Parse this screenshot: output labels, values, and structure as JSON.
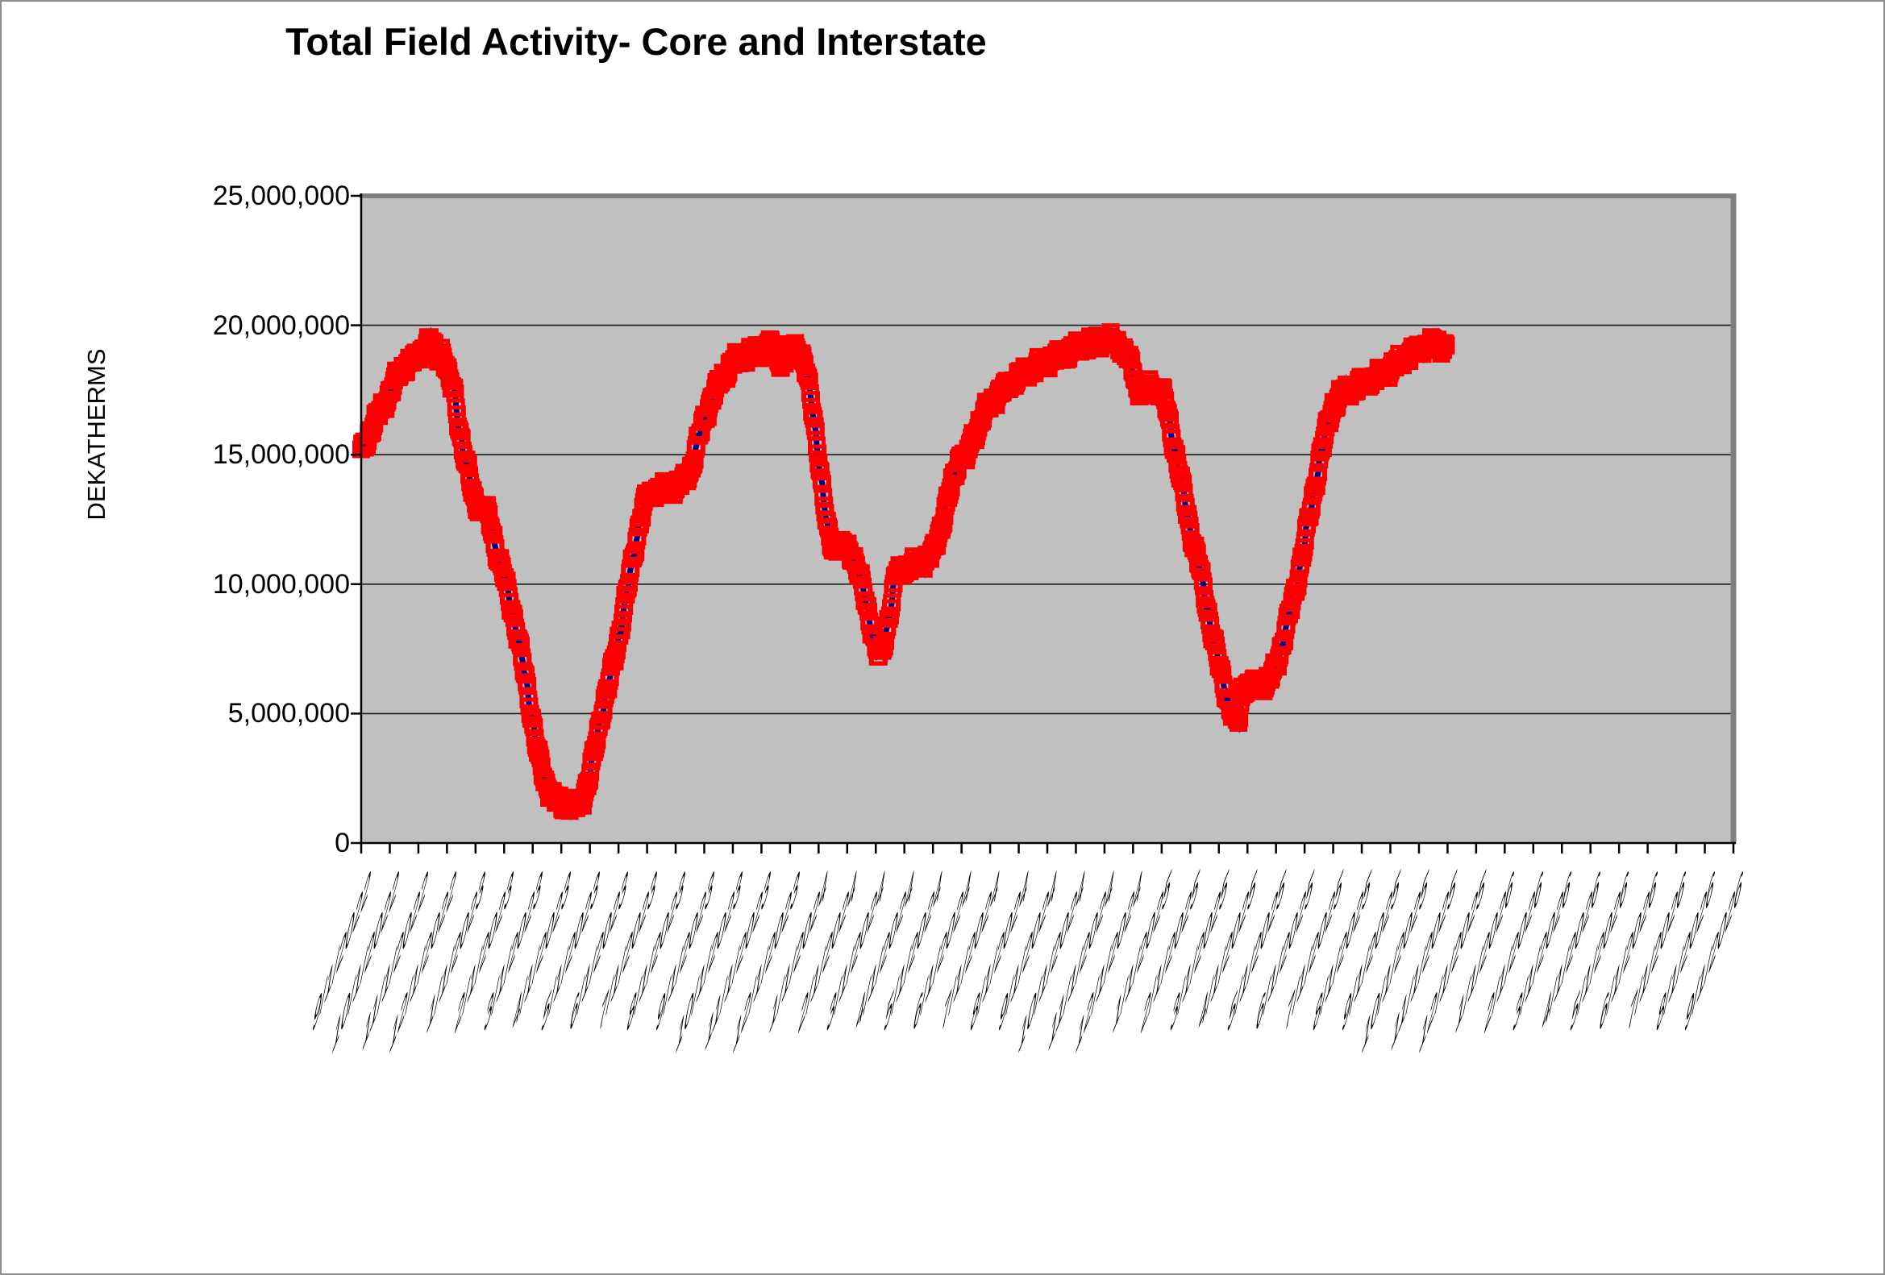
{
  "window": {
    "bg_color": "#ffffff",
    "border_color": "#8c8c8c"
  },
  "chart_data": {
    "type": "line",
    "title": "Total Field Activity- Core and Interstate",
    "xlabel": "",
    "ylabel": "DEKATHERMS",
    "ylim": [
      0,
      25000000
    ],
    "y_tick_interval": 5000000,
    "y_tick_labels": [
      "25,000,000",
      "20,000,000",
      "15,000,000",
      "10,000,000",
      "5,000,000",
      "0"
    ],
    "x_tick_labels": [
      "9/1/2022",
      "10/1/2022",
      "11/1/2022",
      "12/1/2022",
      "1/1/2023",
      "2/1/2023",
      "3/1/2023",
      "4/1/2023",
      "5/1/2023",
      "6/1/2023",
      "7/1/2023",
      "8/1/2023",
      "9/1/2023",
      "10/1/2023",
      "11/1/2023",
      "12/1/2023",
      "1/1/2024",
      "2/1/2024",
      "3/1/2024",
      "4/1/2024",
      "5/1/2024",
      "6/1/2024",
      "7/1/2024",
      "8/1/2024",
      "9/1/2024",
      "10/1/2024",
      "11/1/2024",
      "12/1/2024",
      "1/1/2025",
      "2/1/2025",
      "3/1/2025",
      "4/1/2025",
      "5/1/2025",
      "6/1/2025",
      "7/1/2025",
      "8/1/2025",
      "9/1/2025",
      "10/1/2025",
      "11/1/2025",
      "12/1/2025",
      "1/1/2026",
      "2/1/2026",
      "3/1/2026",
      "4/1/2026",
      "5/1/2026",
      "6/1/2026",
      "7/1/2026",
      "8/1/2026",
      "9/1/2026"
    ],
    "grid": true,
    "legend": "none",
    "plot_bg": "#c0c0c0",
    "gridline_color": "#1a1a1a",
    "plot_border_color": "#7f7f7f",
    "axis_color": "#000000",
    "line_color": "#00008b",
    "marker_color": "#fb0000",
    "marker_style": "hollow-square",
    "data_frequency": "daily",
    "series": [
      {
        "name": "Total Field Activity",
        "units": "millions of dekatherms",
        "x_units": "months after 9/1/2022 (estimated anchors, daily data interpolated)",
        "anchor_points": [
          [
            0,
            15.1
          ],
          [
            0.4,
            16.1
          ],
          [
            0.8,
            17.0
          ],
          [
            1.0,
            17.4
          ],
          [
            1.3,
            18.1
          ],
          [
            1.6,
            18.5
          ],
          [
            1.9,
            18.7
          ],
          [
            2.1,
            19.0
          ],
          [
            2.3,
            19.3
          ],
          [
            2.5,
            19.35
          ],
          [
            2.62,
            18.75
          ],
          [
            2.8,
            19.05
          ],
          [
            2.95,
            18.5
          ],
          [
            3.0,
            18.2
          ],
          [
            3.1,
            17.8
          ],
          [
            3.25,
            17.5
          ],
          [
            3.4,
            16.3
          ],
          [
            3.55,
            15.2
          ],
          [
            3.7,
            14.5
          ],
          [
            3.85,
            13.8
          ],
          [
            4.0,
            13.2
          ],
          [
            4.15,
            12.95
          ],
          [
            4.4,
            12.8
          ],
          [
            4.55,
            12.3
          ],
          [
            4.7,
            11.4
          ],
          [
            4.85,
            10.75
          ],
          [
            5.0,
            10.3
          ],
          [
            5.25,
            9.2
          ],
          [
            5.5,
            7.8
          ],
          [
            5.75,
            6.4
          ],
          [
            5.95,
            5.0
          ],
          [
            6.1,
            3.9
          ],
          [
            6.3,
            2.9
          ],
          [
            6.5,
            2.2
          ],
          [
            6.7,
            1.8
          ],
          [
            6.85,
            1.55
          ],
          [
            7.1,
            1.5
          ],
          [
            7.4,
            1.45
          ],
          [
            7.65,
            1.5
          ],
          [
            7.8,
            1.9
          ],
          [
            8.0,
            2.6
          ],
          [
            8.2,
            3.8
          ],
          [
            8.4,
            5.0
          ],
          [
            8.65,
            6.1
          ],
          [
            9.0,
            7.9
          ],
          [
            9.3,
            9.7
          ],
          [
            9.6,
            11.6
          ],
          [
            9.8,
            12.7
          ],
          [
            10.0,
            13.4
          ],
          [
            10.3,
            13.6
          ],
          [
            10.7,
            13.7
          ],
          [
            11.0,
            13.8
          ],
          [
            11.3,
            14.0
          ],
          [
            11.55,
            14.5
          ],
          [
            11.8,
            15.6
          ],
          [
            12.0,
            16.4
          ],
          [
            12.3,
            17.3
          ],
          [
            12.65,
            18.0
          ],
          [
            13.0,
            18.6
          ],
          [
            13.4,
            18.85
          ],
          [
            14.0,
            19.0
          ],
          [
            14.35,
            19.25
          ],
          [
            14.55,
            19.05
          ],
          [
            14.7,
            18.4
          ],
          [
            14.9,
            18.85
          ],
          [
            15.1,
            19.2
          ],
          [
            15.3,
            19.1
          ],
          [
            15.5,
            18.5
          ],
          [
            15.7,
            17.4
          ],
          [
            15.85,
            16.3
          ],
          [
            16.0,
            14.9
          ],
          [
            16.15,
            13.4
          ],
          [
            16.3,
            12.2
          ],
          [
            16.45,
            11.6
          ],
          [
            16.7,
            11.45
          ],
          [
            17.0,
            11.4
          ],
          [
            17.2,
            11.1
          ],
          [
            17.4,
            10.4
          ],
          [
            17.6,
            9.6
          ],
          [
            17.8,
            8.6
          ],
          [
            17.95,
            7.8
          ],
          [
            18.1,
            7.15
          ],
          [
            18.25,
            7.5
          ],
          [
            18.45,
            8.7
          ],
          [
            18.65,
            10.0
          ],
          [
            18.75,
            10.5
          ],
          [
            19.0,
            10.65
          ],
          [
            19.4,
            10.75
          ],
          [
            19.8,
            11.0
          ],
          [
            20.0,
            11.2
          ],
          [
            20.3,
            12.3
          ],
          [
            20.6,
            13.6
          ],
          [
            20.9,
            14.8
          ],
          [
            21.05,
            15.2
          ],
          [
            21.15,
            14.45
          ],
          [
            21.25,
            15.3
          ],
          [
            21.5,
            15.9
          ],
          [
            21.75,
            16.5
          ],
          [
            22.0,
            17.0
          ],
          [
            22.35,
            17.4
          ],
          [
            22.7,
            17.75
          ],
          [
            23.0,
            18.0
          ],
          [
            23.35,
            18.3
          ],
          [
            23.7,
            18.45
          ],
          [
            24.0,
            18.6
          ],
          [
            24.4,
            18.8
          ],
          [
            24.7,
            18.95
          ],
          [
            25.0,
            19.1
          ],
          [
            25.4,
            19.3
          ],
          [
            25.7,
            19.4
          ],
          [
            26.0,
            19.45
          ],
          [
            26.35,
            19.35
          ],
          [
            26.55,
            19.25
          ],
          [
            26.75,
            18.9
          ],
          [
            27.0,
            18.3
          ],
          [
            27.15,
            17.55
          ],
          [
            27.3,
            17.45
          ],
          [
            27.5,
            17.65
          ],
          [
            27.75,
            17.55
          ],
          [
            28.0,
            17.5
          ],
          [
            28.15,
            16.9
          ],
          [
            28.35,
            15.8
          ],
          [
            28.55,
            14.7
          ],
          [
            28.8,
            13.3
          ],
          [
            29.0,
            12.1
          ],
          [
            29.3,
            10.8
          ],
          [
            29.6,
            9.0
          ],
          [
            29.85,
            7.7
          ],
          [
            30.0,
            6.9
          ],
          [
            30.3,
            5.6
          ],
          [
            30.55,
            4.75
          ],
          [
            30.7,
            4.7
          ],
          [
            30.82,
            5.95
          ],
          [
            31.0,
            6.1
          ],
          [
            31.4,
            6.1
          ],
          [
            31.75,
            6.25
          ],
          [
            32.0,
            6.8
          ],
          [
            32.35,
            8.3
          ],
          [
            32.7,
            9.9
          ],
          [
            33.0,
            11.6
          ],
          [
            33.3,
            13.4
          ],
          [
            33.55,
            15.0
          ],
          [
            33.8,
            16.1
          ],
          [
            34.0,
            16.9
          ],
          [
            34.25,
            17.3
          ],
          [
            34.6,
            17.55
          ],
          [
            35.0,
            17.75
          ],
          [
            35.4,
            17.95
          ],
          [
            35.7,
            18.15
          ],
          [
            36.0,
            18.35
          ],
          [
            36.35,
            18.6
          ],
          [
            36.7,
            18.9
          ],
          [
            37.0,
            19.1
          ],
          [
            37.3,
            19.25
          ],
          [
            37.7,
            19.25
          ],
          [
            37.95,
            19.2
          ]
        ]
      }
    ]
  }
}
